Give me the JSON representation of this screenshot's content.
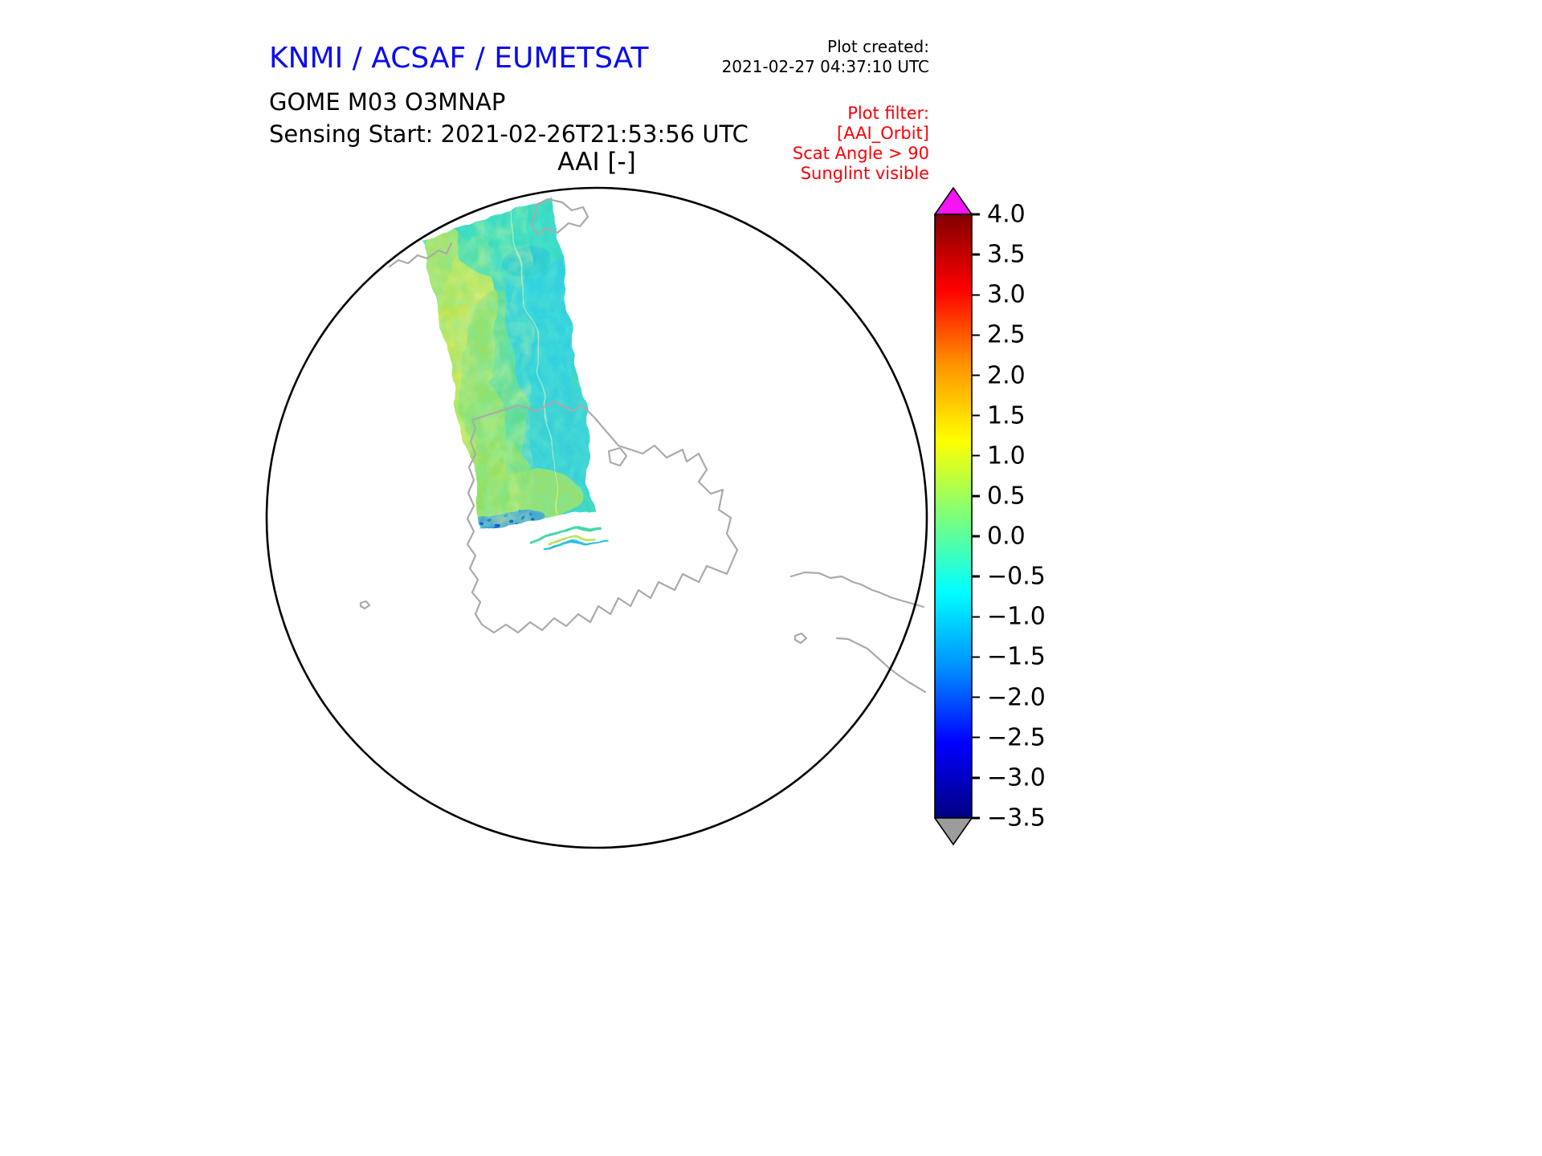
{
  "colors": {
    "title_blue": "#0b0bee",
    "filter_red": "#fb0006",
    "coast_gray": "#aaaaaa",
    "map_outline": "#000000",
    "background": "#ffffff"
  },
  "header": {
    "org_title": "KNMI / ACSAF / EUMETSAT",
    "plot_created_label": "Plot created:",
    "plot_created_value": "2021-02-27 04:37:10 UTC",
    "product_line1": "GOME M03 O3MNAP",
    "product_line2": "Sensing Start: 2021-02-26T21:53:56 UTC",
    "plot_title": "AAI [-]",
    "filter_lines": [
      "Plot filter:",
      "[AAI_Orbit]",
      "Scat Angle > 90",
      "Sunglint visible"
    ]
  },
  "chart_data": {
    "type": "heatmap",
    "title": "AAI [-]",
    "subtitle": "GOME M03 O3MNAP — Absorbing Aerosol Index, single orbit swath",
    "projection": "polar stereographic, South Pole, circular frame with gray coastlines (Antarctica centered)",
    "sensing_start": "2021-02-26T21:53:56 UTC",
    "plot_created": "2021-02-27 04:37:10 UTC",
    "filters_applied": [
      "AAI_Orbit",
      "Scat Angle > 90",
      "Sunglint visible"
    ],
    "colorbar": {
      "orientation": "vertical",
      "position": "right",
      "vmin": -3.5,
      "vmax": 4.0,
      "tick_step": 0.5,
      "ticks": [
        "4.0",
        "3.5",
        "3.0",
        "2.5",
        "2.0",
        "1.5",
        "1.0",
        "0.5",
        "0.0",
        "−0.5",
        "−1.0",
        "−1.5",
        "−2.0",
        "−2.5",
        "−3.0",
        "−3.5"
      ],
      "tick_values": [
        4.0,
        3.5,
        3.0,
        2.5,
        2.0,
        1.5,
        1.0,
        0.5,
        0.0,
        -0.5,
        -1.0,
        -1.5,
        -2.0,
        -2.5,
        -3.0,
        -3.5
      ],
      "colormap": "jet",
      "stops": [
        {
          "offset": "0%",
          "color": "#000080"
        },
        {
          "offset": "12.5%",
          "color": "#0000ff"
        },
        {
          "offset": "25%",
          "color": "#0090ff"
        },
        {
          "offset": "37.5%",
          "color": "#00ffff"
        },
        {
          "offset": "50%",
          "color": "#7dff7a"
        },
        {
          "offset": "62.5%",
          "color": "#ffff00"
        },
        {
          "offset": "75%",
          "color": "#ff9400"
        },
        {
          "offset": "87.5%",
          "color": "#ff0000"
        },
        {
          "offset": "100%",
          "color": "#800000"
        }
      ],
      "over_color": "#f414f4",
      "under_color": "#9c9c9c"
    },
    "swath": {
      "description": "Single GOME-2 (Metop-B / M03) orbit swath entering the circular disc near the top and descending toward the South Pole region; the rest of the disc contains no data",
      "visible_value_range_approx": [
        -2.0,
        1.5
      ],
      "dominant_values": "mostly between −0.5 and 0.5 (cyan–green); yellow-green patches around 0.5–1.0 along the left side of the swath; scattered −1 to −2 (blue) speckles along the lower swath edge; thin detached swath slivers just below the main swath end"
    }
  }
}
